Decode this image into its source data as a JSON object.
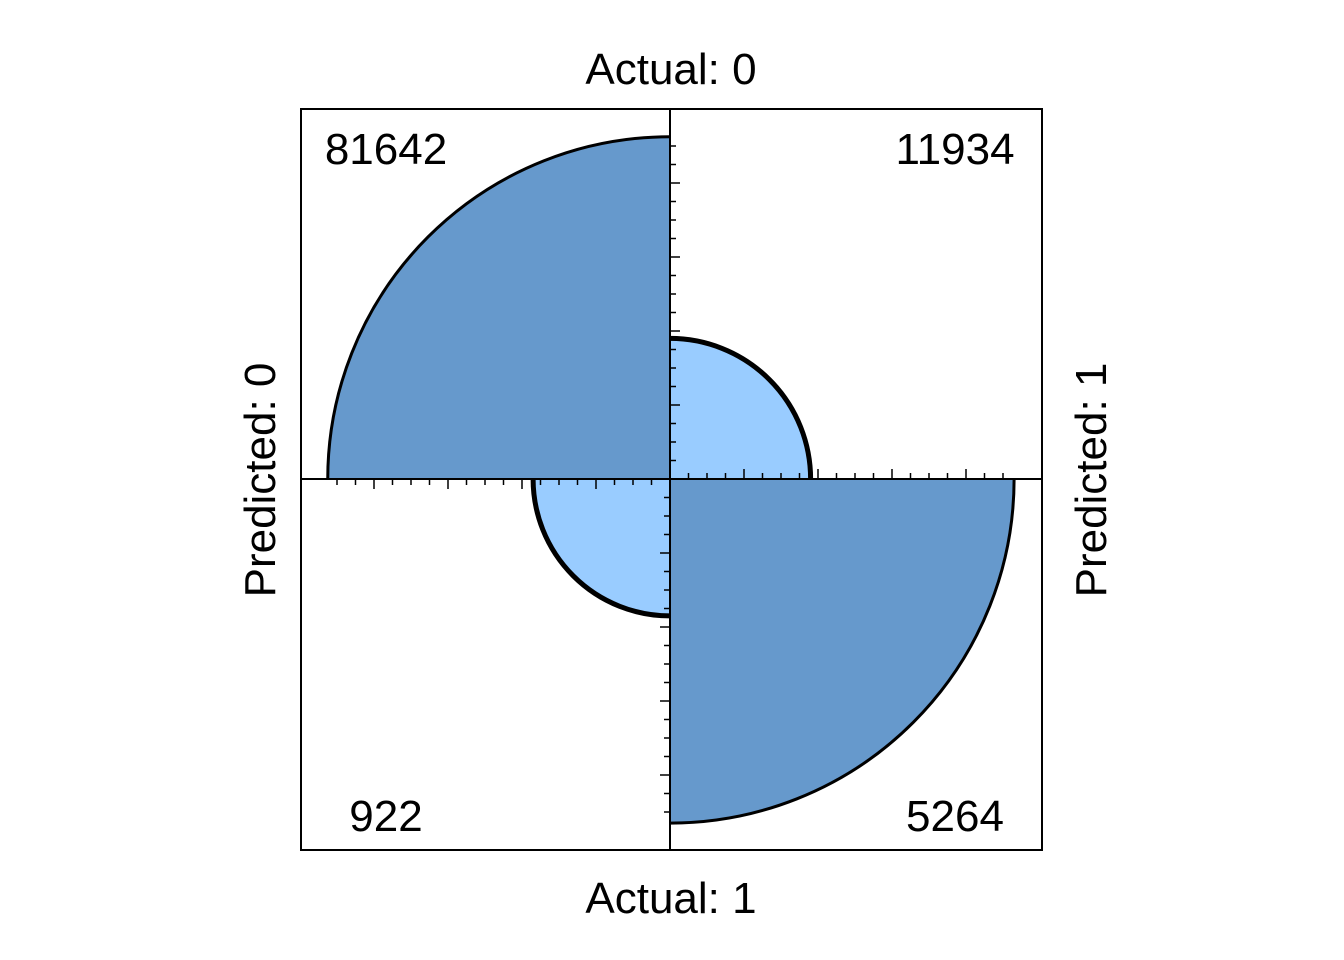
{
  "chart_data": {
    "type": "fourfold",
    "top_label": "Actual: 0",
    "bottom_label": "Actual: 1",
    "left_label": "Predicted: 0",
    "right_label": "Predicted: 1",
    "cells": [
      {
        "quadrant": "top-left",
        "actual": "0",
        "predicted": "0",
        "count": 81642,
        "label": "81642",
        "radius_fraction": 0.925,
        "fill": "#6699cc"
      },
      {
        "quadrant": "top-right",
        "actual": "0",
        "predicted": "1",
        "count": 11934,
        "label": "11934",
        "radius_fraction": 0.38,
        "fill": "#99ccff"
      },
      {
        "quadrant": "bottom-left",
        "actual": "1",
        "predicted": "0",
        "count": 922,
        "label": "922",
        "radius_fraction": 0.37,
        "fill": "#99ccff"
      },
      {
        "quadrant": "bottom-right",
        "actual": "1",
        "predicted": "1",
        "count": 5264,
        "label": "5264",
        "radius_fraction": 0.93,
        "fill": "#6699cc"
      }
    ],
    "grid": false,
    "legend": "none"
  }
}
